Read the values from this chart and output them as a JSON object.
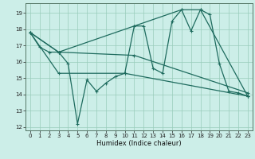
{
  "title": "",
  "xlabel": "Humidex (Indice chaleur)",
  "bg_color": "#cceee8",
  "line_color": "#1e6b5e",
  "grid_color": "#99ccbb",
  "xlim": [
    -0.5,
    23.5
  ],
  "ylim": [
    11.8,
    19.6
  ],
  "yticks": [
    12,
    13,
    14,
    15,
    16,
    17,
    18,
    19
  ],
  "xticks": [
    0,
    1,
    2,
    3,
    4,
    5,
    6,
    7,
    8,
    9,
    10,
    11,
    12,
    13,
    14,
    15,
    16,
    17,
    18,
    19,
    20,
    21,
    22,
    23
  ],
  "series1": [
    [
      0,
      17.8
    ],
    [
      1,
      16.9
    ],
    [
      2,
      16.6
    ],
    [
      3,
      16.6
    ],
    [
      4,
      15.9
    ],
    [
      5,
      12.2
    ],
    [
      6,
      14.9
    ],
    [
      7,
      14.2
    ],
    [
      8,
      14.7
    ],
    [
      9,
      15.1
    ],
    [
      10,
      15.3
    ],
    [
      11,
      18.2
    ],
    [
      12,
      18.2
    ],
    [
      13,
      15.6
    ],
    [
      14,
      15.3
    ],
    [
      15,
      18.5
    ],
    [
      16,
      19.2
    ],
    [
      17,
      17.9
    ],
    [
      18,
      19.2
    ],
    [
      19,
      18.9
    ],
    [
      20,
      15.9
    ],
    [
      21,
      14.2
    ],
    [
      22,
      14.1
    ],
    [
      23,
      13.9
    ]
  ],
  "series2": [
    [
      0,
      17.8
    ],
    [
      3,
      16.6
    ],
    [
      11,
      18.2
    ],
    [
      16,
      19.2
    ],
    [
      18,
      19.2
    ],
    [
      23,
      13.9
    ]
  ],
  "series3": [
    [
      0,
      17.8
    ],
    [
      3,
      16.6
    ],
    [
      11,
      16.4
    ],
    [
      23,
      14.1
    ]
  ],
  "series4": [
    [
      0,
      17.8
    ],
    [
      3,
      15.3
    ],
    [
      10,
      15.3
    ],
    [
      23,
      13.9
    ]
  ]
}
